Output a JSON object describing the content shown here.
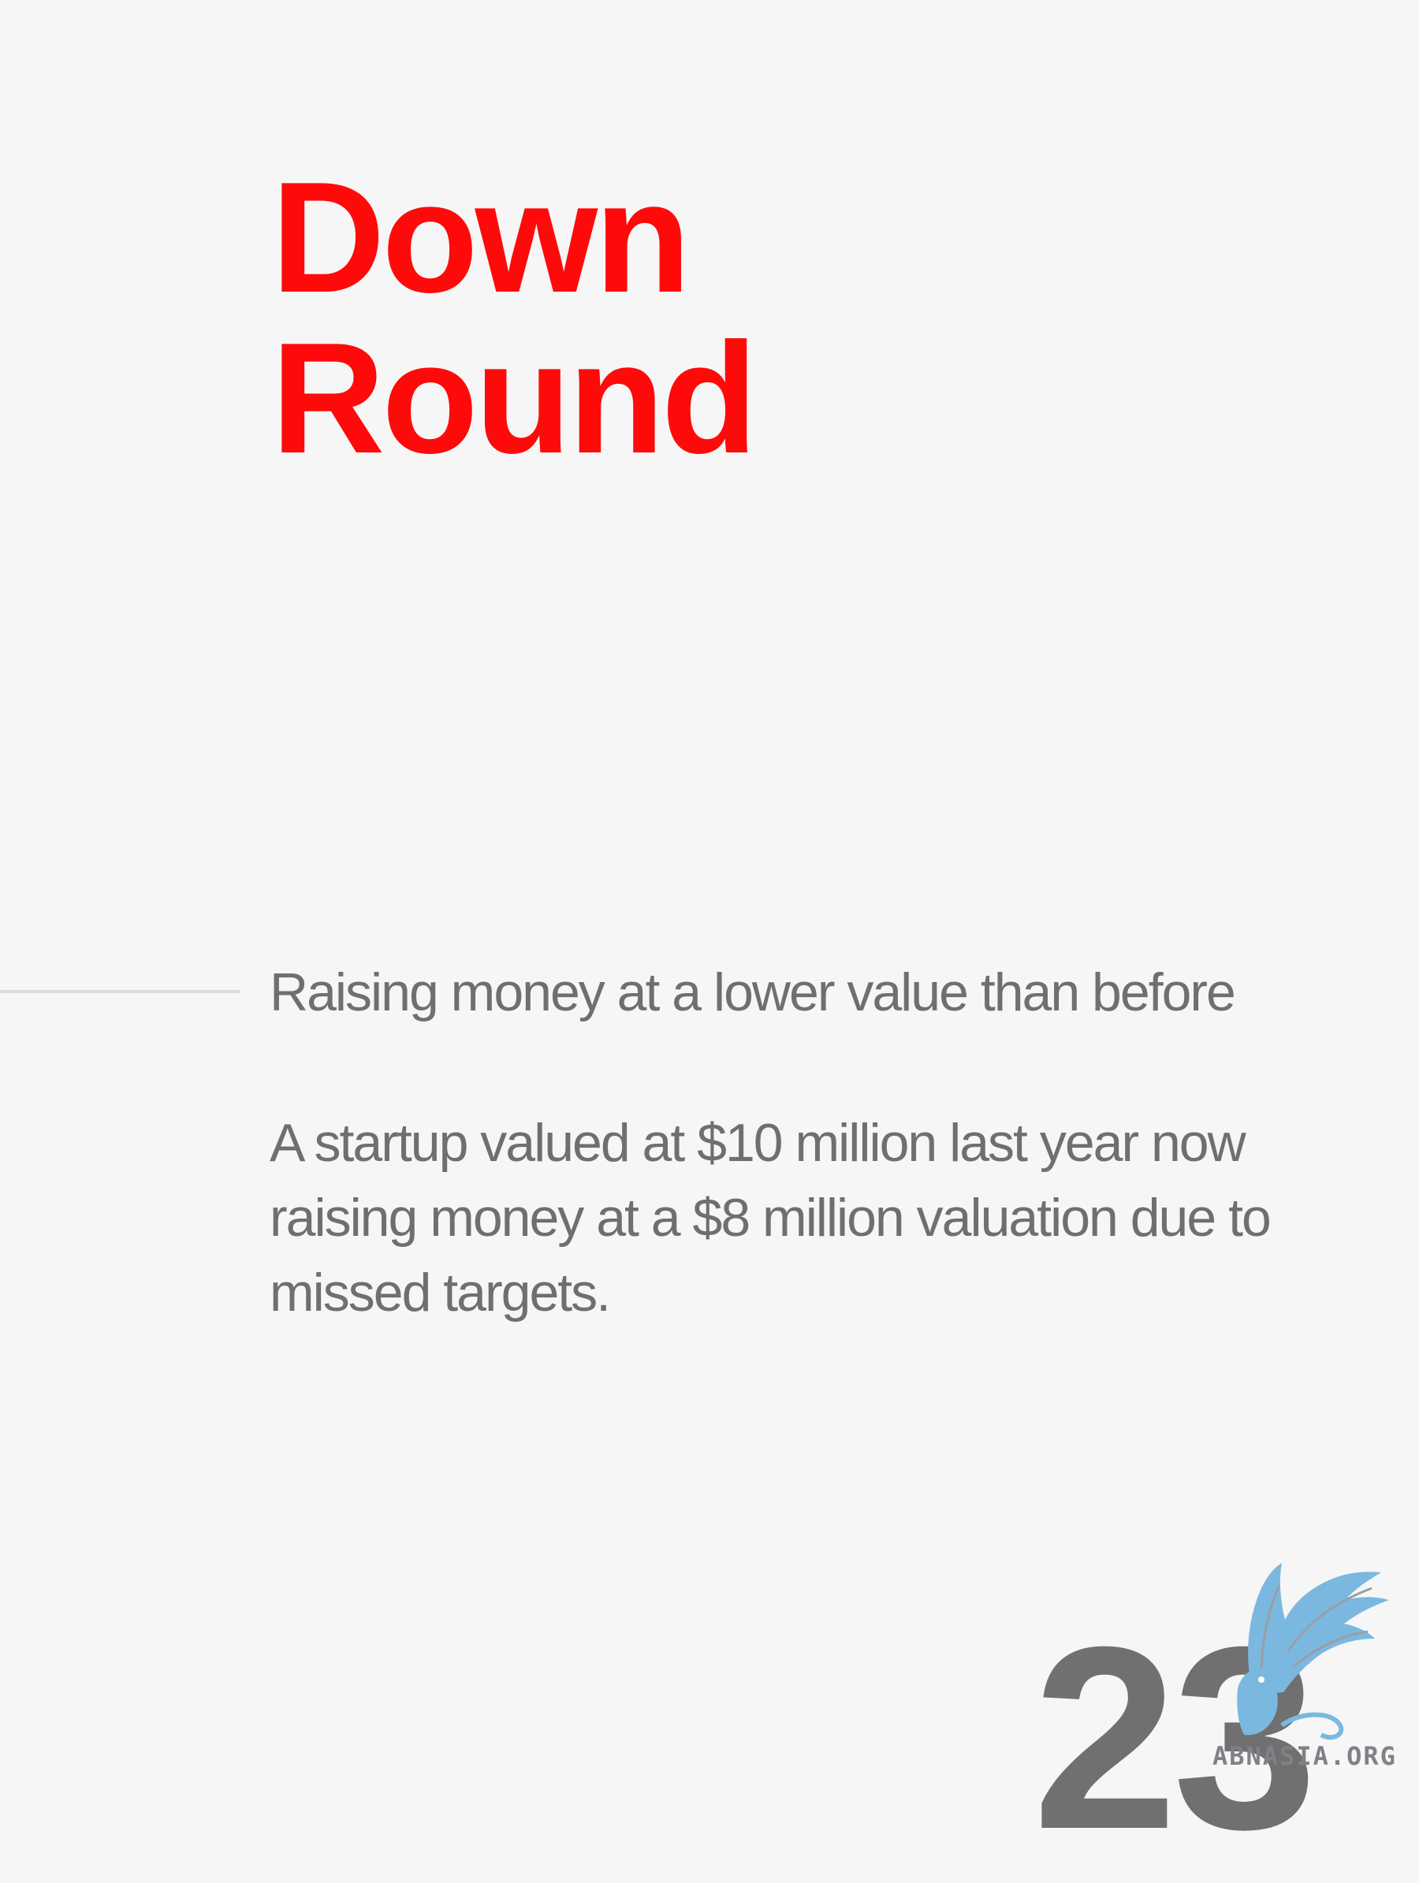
{
  "slide": {
    "title_lines": [
      "Down",
      "Round"
    ],
    "definition": "Raising money at a lower value than before",
    "example": "A startup valued at $10 million last year now raising money at a $8 million valuation due to missed targets.",
    "page_number": "23"
  },
  "brand": {
    "logo_icon": "griffin-logo-icon",
    "logo_text": "ABNASIA.ORG"
  },
  "colors": {
    "background": "#f6f6f6",
    "title": "#ff0a0a",
    "body_text": "#6f6f6f",
    "rule": "#dcdcdc",
    "page_number": "#707070",
    "logo_blue": "#7ab8e0"
  }
}
